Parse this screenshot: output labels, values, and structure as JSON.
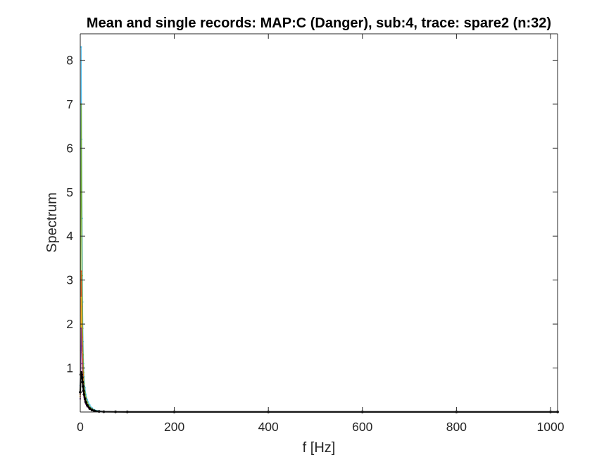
{
  "chart_data": {
    "type": "line",
    "title": "Mean and single records: MAP:C (Danger), sub:4, trace: spare2 (n:32)",
    "xlabel": "f [Hz]",
    "ylabel": "Spectrum",
    "xlim": [
      0,
      1015
    ],
    "ylim": [
      0,
      8.6
    ],
    "x_ticks": [
      0,
      200,
      400,
      600,
      800,
      1000
    ],
    "y_ticks": [
      1,
      2,
      3,
      4,
      5,
      6,
      7,
      8
    ],
    "grid": false,
    "legend": "none",
    "series": [
      {
        "role": "single-record",
        "color": "#4dbeee",
        "x": [
          0,
          1,
          2,
          3,
          4,
          5,
          6,
          7,
          8,
          10,
          12,
          15,
          20,
          25,
          30,
          40,
          50,
          75,
          100,
          200,
          400,
          600,
          800,
          1000,
          1015
        ],
        "values": [
          0.6,
          3.0,
          8.3,
          6.2,
          4.4,
          2.5,
          1.6,
          1.1,
          0.8,
          0.55,
          0.4,
          0.28,
          0.16,
          0.09,
          0.05,
          0.025,
          0.012,
          0.006,
          0.004,
          0.003,
          0.002,
          0.002,
          0.002,
          0.002,
          0.002
        ]
      },
      {
        "role": "single-record",
        "color": "#77ac30",
        "x": [
          0,
          1,
          2,
          3,
          4,
          5,
          6,
          7,
          8,
          10,
          12,
          15,
          20,
          25,
          30,
          40,
          50,
          75,
          100,
          200,
          400,
          600,
          800,
          1000,
          1015
        ],
        "values": [
          0.5,
          2.2,
          7.0,
          5.0,
          3.1,
          1.9,
          1.3,
          0.9,
          0.65,
          0.45,
          0.33,
          0.22,
          0.12,
          0.07,
          0.04,
          0.02,
          0.01,
          0.005,
          0.003,
          0.002,
          0.002,
          0.002,
          0.002,
          0.002,
          0.002
        ]
      },
      {
        "role": "single-record",
        "color": "#d95319",
        "x": [
          0,
          1,
          2,
          3,
          4,
          5,
          6,
          7,
          8,
          10,
          12,
          15,
          20,
          25,
          30,
          40,
          50,
          75,
          100,
          200,
          400,
          600,
          800,
          1000,
          1015
        ],
        "values": [
          0.4,
          1.4,
          3.2,
          2.4,
          1.7,
          1.2,
          0.85,
          0.6,
          0.45,
          0.32,
          0.24,
          0.16,
          0.09,
          0.05,
          0.03,
          0.015,
          0.008,
          0.004,
          0.003,
          0.002,
          0.002,
          0.002,
          0.002,
          0.002,
          0.002
        ]
      },
      {
        "role": "single-record",
        "color": "#edb120",
        "x": [
          0,
          1,
          2,
          3,
          4,
          5,
          6,
          7,
          8,
          10,
          12,
          15,
          20,
          25,
          30,
          40,
          50,
          75,
          100,
          200,
          400,
          600,
          800,
          1000,
          1015
        ],
        "values": [
          0.35,
          1.1,
          2.6,
          1.9,
          1.35,
          0.95,
          0.7,
          0.5,
          0.38,
          0.27,
          0.2,
          0.13,
          0.07,
          0.04,
          0.025,
          0.012,
          0.006,
          0.003,
          0.002,
          0.002,
          0.002,
          0.002,
          0.002,
          0.002,
          0.002
        ]
      },
      {
        "role": "single-record",
        "color": "#7e2f8e",
        "x": [
          0,
          1,
          2,
          3,
          4,
          5,
          6,
          7,
          8,
          10,
          12,
          15,
          20,
          25,
          30,
          40,
          50,
          75,
          100,
          200,
          400,
          600,
          800,
          1000,
          1015
        ],
        "values": [
          0.3,
          0.9,
          1.9,
          1.5,
          1.1,
          0.8,
          0.6,
          0.45,
          0.34,
          0.24,
          0.18,
          0.12,
          0.065,
          0.035,
          0.02,
          0.01,
          0.005,
          0.003,
          0.002,
          0.002,
          0.002,
          0.002,
          0.002,
          0.002,
          0.002
        ]
      },
      {
        "role": "mean",
        "color": "#000000",
        "x": [
          0,
          1,
          2,
          3,
          4,
          5,
          6,
          7,
          8,
          10,
          12,
          15,
          20,
          25,
          30,
          40,
          50,
          75,
          100,
          200,
          400,
          600,
          800,
          1000,
          1015
        ],
        "values": [
          0.45,
          0.85,
          0.9,
          0.85,
          0.78,
          0.68,
          0.58,
          0.48,
          0.4,
          0.3,
          0.22,
          0.15,
          0.08,
          0.045,
          0.025,
          0.012,
          0.006,
          0.003,
          0.002,
          0.002,
          0.002,
          0.002,
          0.002,
          0.002,
          0.002
        ]
      }
    ]
  }
}
